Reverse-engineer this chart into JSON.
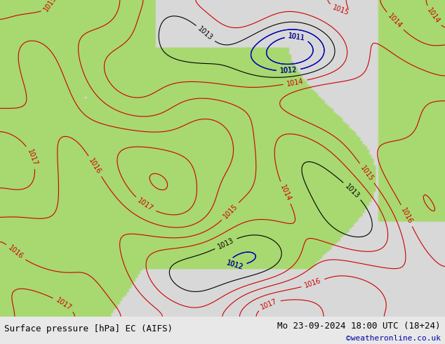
{
  "title_left": "Surface pressure [hPa] EC (AIFS)",
  "title_right": "Mo 23-09-2024 18:00 UTC (18+24)",
  "credit": "©weatheronline.co.uk",
  "bg_color": "#e8e8e8",
  "land_color": "#a8d870",
  "sea_color": "#d8d8d8",
  "contour_color_red": "#cc0000",
  "contour_color_black": "#000000",
  "contour_color_blue": "#0000cc",
  "label_fontsize": 7,
  "footer_fontsize": 9,
  "credit_fontsize": 8,
  "figsize": [
    6.34,
    4.9
  ],
  "dpi": 100
}
